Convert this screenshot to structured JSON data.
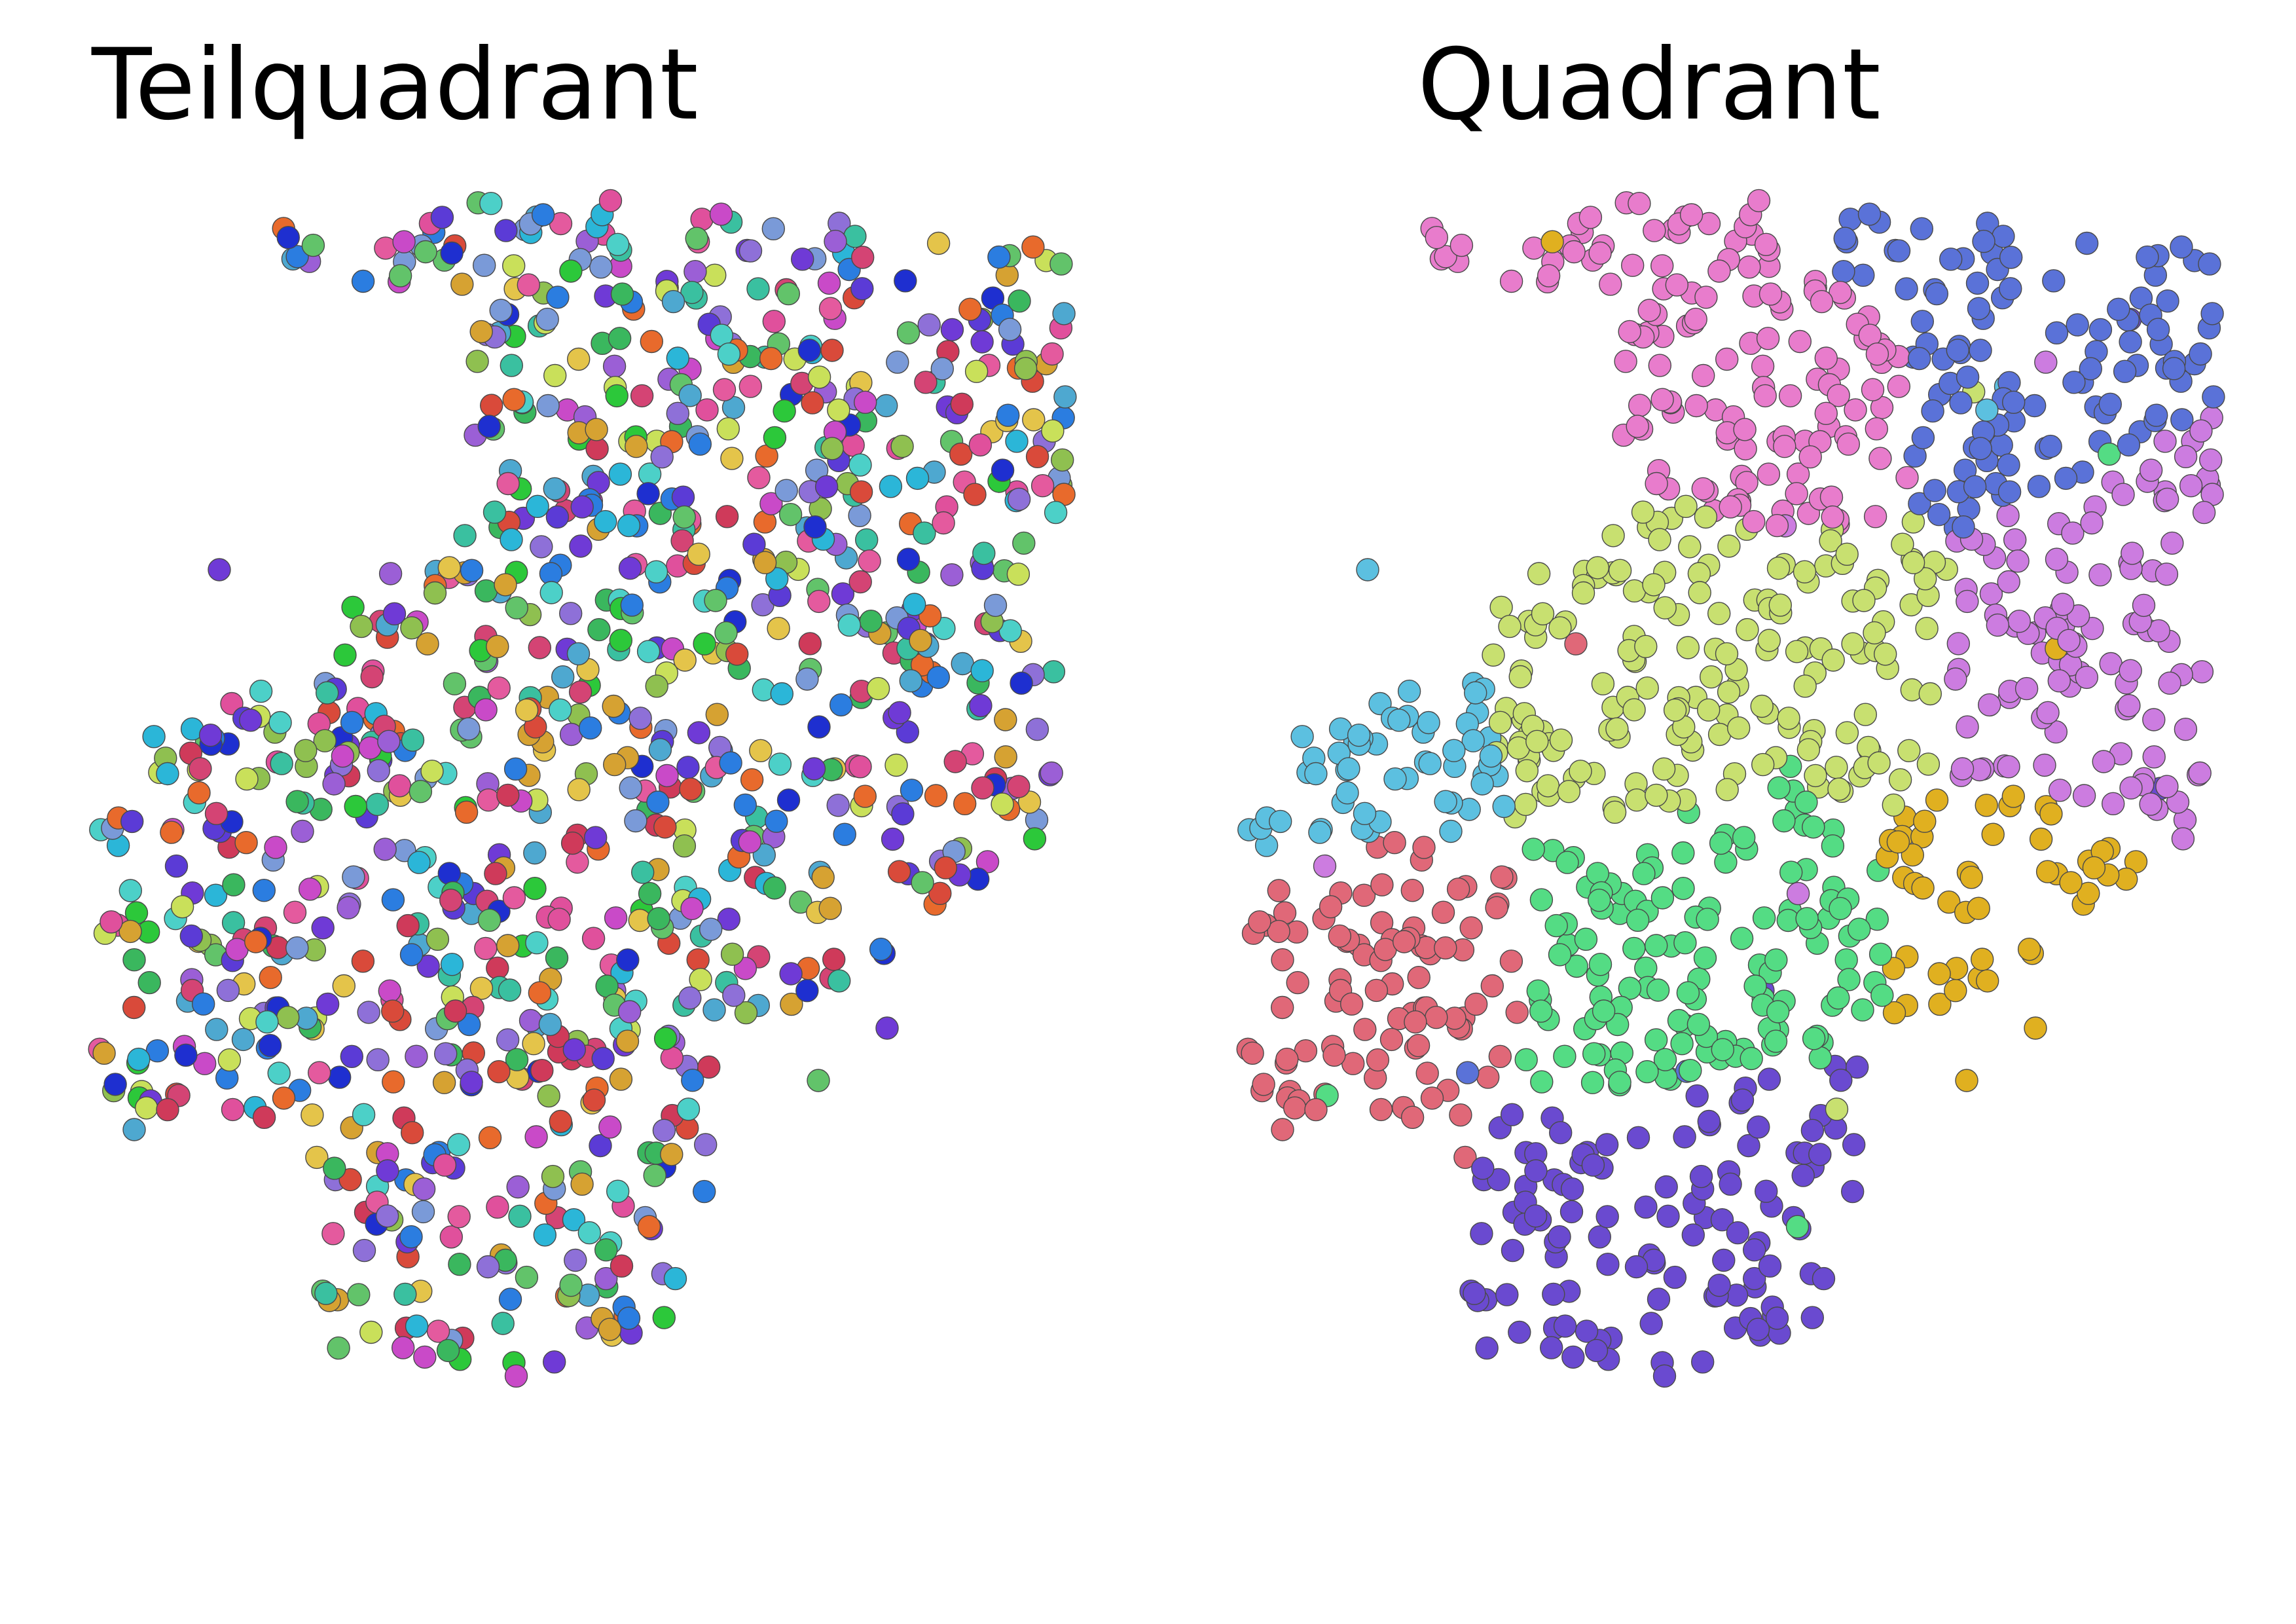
{
  "panels": [
    {
      "id": "left",
      "title": "Teilquadrant",
      "palette": [
        "#4cd0c8",
        "#e45a9e",
        "#8e70d8",
        "#2bb6d8",
        "#5b3bd6",
        "#e0509c",
        "#62c36a",
        "#2b7de0",
        "#d94a3a",
        "#3ab75e",
        "#c9e05a",
        "#e86a2c",
        "#6f3ad6",
        "#e4c44a",
        "#9b5fd6",
        "#4ea8d0",
        "#d44474",
        "#3ac0a0",
        "#8fc050",
        "#1e2fd0",
        "#d6a232",
        "#c94ac8",
        "#2cc83a",
        "#cf3a5a",
        "#7a9ad8"
      ]
    },
    {
      "id": "right",
      "title": "Quadrant",
      "palette": [
        "#e06878",
        "#5a72d8",
        "#e87ccc",
        "#c8e070",
        "#54dc84",
        "#6a4ad0",
        "#cc7ce0",
        "#e0b020",
        "#5cc0e0"
      ]
    }
  ]
}
